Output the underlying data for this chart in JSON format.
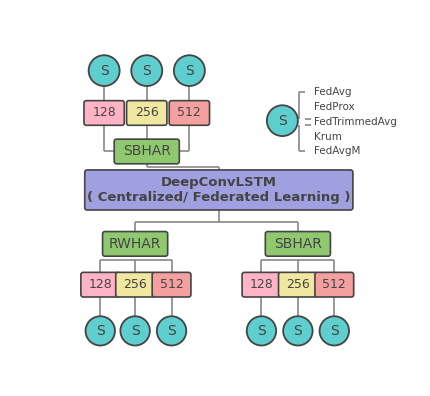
{
  "bg_color": "#ffffff",
  "circle_color": "#5ecece",
  "circle_edge": "#444444",
  "box_pink": "#ffb3c6",
  "box_yellow": "#f0e8a0",
  "box_salmon": "#f4a0a0",
  "box_green": "#90c870",
  "box_purple": "#a0a0e0",
  "line_color": "#888888",
  "text_color": "#444444",
  "fed_methods": [
    "FedAvg",
    "FedProx",
    "FedTrimmedAvg",
    "Krum",
    "FedAvgM"
  ]
}
